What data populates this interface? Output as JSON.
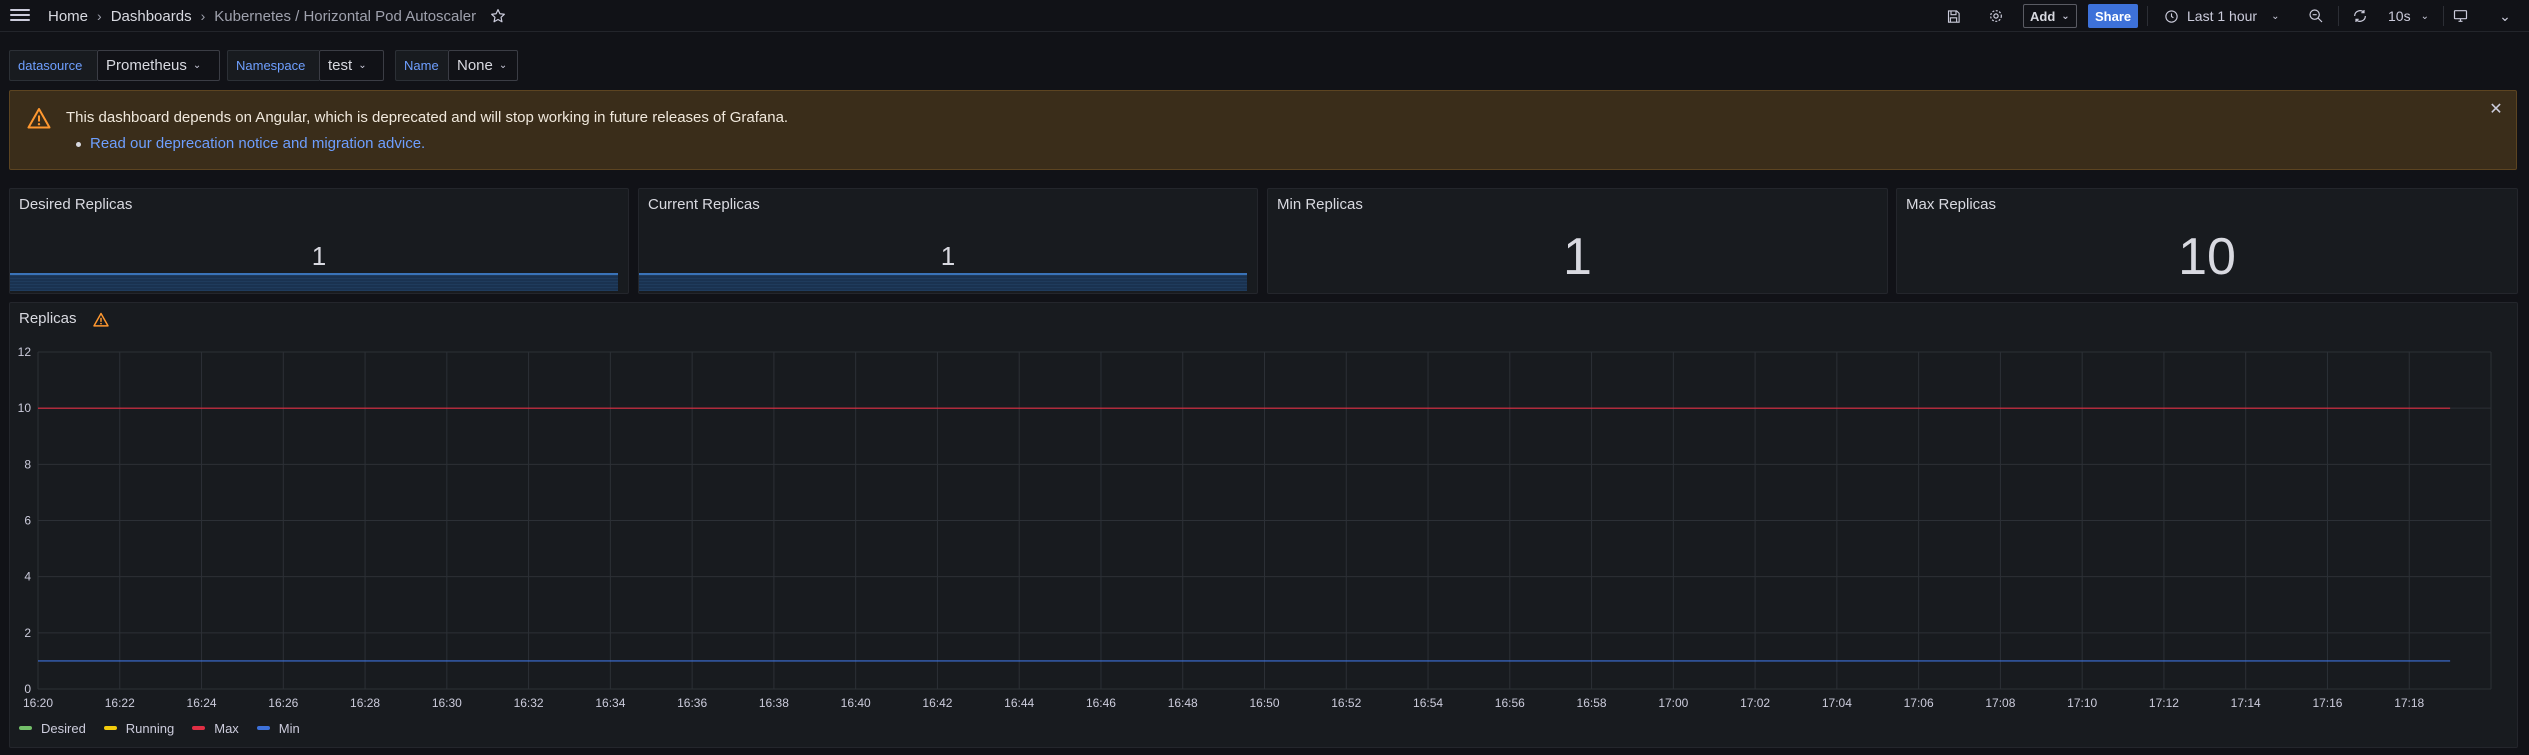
{
  "breadcrumb": {
    "home": "Home",
    "dashboards": "Dashboards",
    "current": "Kubernetes / Horizontal Pod Autoscaler"
  },
  "toolbar": {
    "add_label": "Add",
    "share_label": "Share",
    "time_range": "Last 1 hour",
    "refresh_interval": "10s"
  },
  "variables": [
    {
      "label": "datasource",
      "value": "Prometheus"
    },
    {
      "label": "Namespace",
      "value": "test"
    },
    {
      "label": "Name",
      "value": "None"
    }
  ],
  "alert": {
    "title": "This dashboard depends on Angular, which is deprecated and will stop working in future releases of Grafana.",
    "link": "Read our deprecation notice and migration advice."
  },
  "stats": [
    {
      "title": "Desired Replicas",
      "value": "1"
    },
    {
      "title": "Current Replicas",
      "value": "1"
    },
    {
      "title": "Min Replicas",
      "value": "1"
    },
    {
      "title": "Max Replicas",
      "value": "10"
    }
  ],
  "replicas_panel": {
    "title": "Replicas"
  },
  "colors": {
    "desired": "#73bf69",
    "running": "#f2cc0c",
    "max": "#e02f44",
    "min": "#3d71d9",
    "warning": "#ff9830",
    "grid": "#2c3036",
    "axis_text": "#ccccdc"
  },
  "chart_data": {
    "type": "line",
    "title": "Replicas",
    "x": [
      "16:20",
      "16:22",
      "16:24",
      "16:26",
      "16:28",
      "16:30",
      "16:32",
      "16:34",
      "16:36",
      "16:38",
      "16:40",
      "16:42",
      "16:44",
      "16:46",
      "16:48",
      "16:50",
      "16:52",
      "16:54",
      "16:56",
      "16:58",
      "17:00",
      "17:02",
      "17:04",
      "17:06",
      "17:08",
      "17:10",
      "17:12",
      "17:14",
      "17:16",
      "17:18"
    ],
    "ylim": [
      0,
      12
    ],
    "yticks": [
      0,
      2,
      4,
      6,
      8,
      10,
      12
    ],
    "xlim_minutes": [
      0,
      60
    ],
    "grid": true,
    "legend_position": "bottom-left",
    "series": [
      {
        "name": "Desired",
        "color_key": "desired",
        "points": []
      },
      {
        "name": "Running",
        "color_key": "running",
        "points": []
      },
      {
        "name": "Max",
        "color_key": "max",
        "points": [
          [
            "16:20",
            10
          ],
          [
            "17:19",
            10
          ]
        ]
      },
      {
        "name": "Min",
        "color_key": "min",
        "points": [
          [
            "16:20",
            1
          ],
          [
            "17:19",
            1
          ]
        ]
      }
    ]
  }
}
